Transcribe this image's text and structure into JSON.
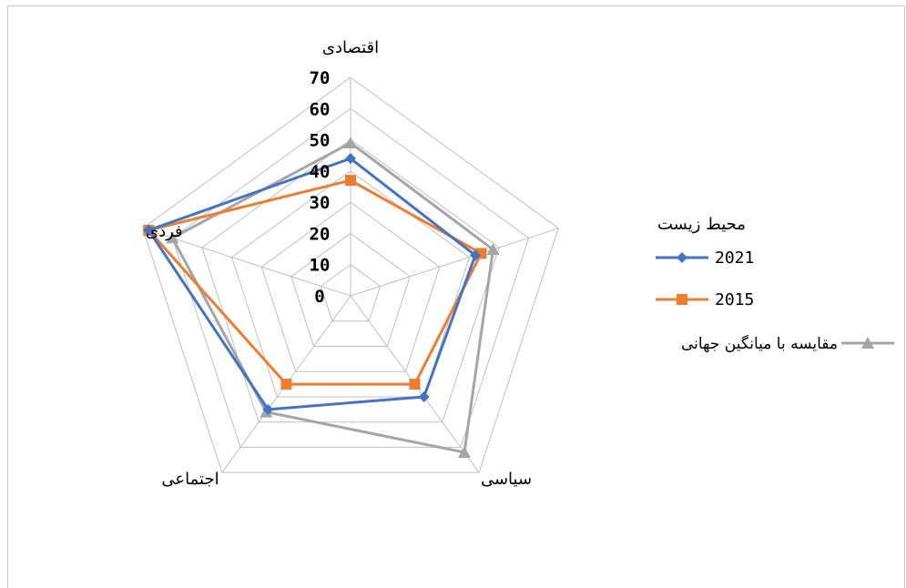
{
  "chart_data": {
    "type": "radar",
    "categories": [
      "اقتصادی",
      "محیط زیست",
      "سیاسی",
      "اجتماعی",
      "فردی"
    ],
    "scale": {
      "min": 0,
      "max": 70,
      "step": 10
    },
    "ticks": [
      "0",
      "10",
      "20",
      "30",
      "40",
      "50",
      "60",
      "70"
    ],
    "series": [
      {
        "name": "2021",
        "color": "#4472C4",
        "marker": "diamond",
        "values": [
          44,
          42,
          40,
          45,
          68
        ]
      },
      {
        "name": "2015",
        "color": "#ED7D31",
        "marker": "square",
        "values": [
          37,
          44,
          35,
          35,
          68
        ]
      },
      {
        "name": "مقایسه با میانگین جهانی",
        "color": "#A5A5A5",
        "marker": "triangle",
        "values": [
          49,
          48,
          62,
          46,
          60
        ]
      }
    ],
    "legend_position": "right"
  }
}
